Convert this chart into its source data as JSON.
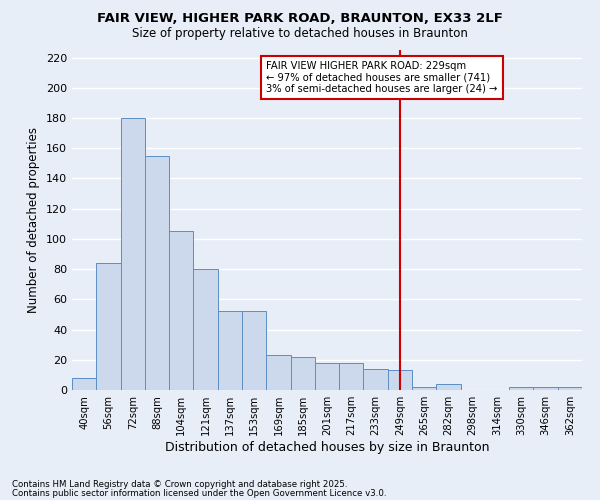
{
  "title": "FAIR VIEW, HIGHER PARK ROAD, BRAUNTON, EX33 2LF",
  "subtitle": "Size of property relative to detached houses in Braunton",
  "xlabel": "Distribution of detached houses by size in Braunton",
  "ylabel": "Number of detached properties",
  "categories": [
    "40sqm",
    "56sqm",
    "72sqm",
    "88sqm",
    "104sqm",
    "121sqm",
    "137sqm",
    "153sqm",
    "169sqm",
    "185sqm",
    "201sqm",
    "217sqm",
    "233sqm",
    "249sqm",
    "265sqm",
    "282sqm",
    "298sqm",
    "314sqm",
    "330sqm",
    "346sqm",
    "362sqm"
  ],
  "values": [
    8,
    84,
    180,
    155,
    105,
    80,
    52,
    52,
    23,
    22,
    18,
    18,
    14,
    13,
    2,
    4,
    0,
    0,
    2,
    2,
    2
  ],
  "bar_color": "#ccd9ed",
  "bar_edge_color": "#5b8ec4",
  "background_color": "#e8eef8",
  "grid_color": "#ffffff",
  "vline_x": 13.0,
  "vline_color": "#cc0000",
  "annotation_title": "FAIR VIEW HIGHER PARK ROAD: 229sqm",
  "annotation_line1": "← 97% of detached houses are smaller (741)",
  "annotation_line2": "3% of semi-detached houses are larger (24) →",
  "annotation_box_color": "#ffffff",
  "annotation_border_color": "#cc0000",
  "ylim": [
    0,
    225
  ],
  "yticks": [
    0,
    20,
    40,
    60,
    80,
    100,
    120,
    140,
    160,
    180,
    200,
    220
  ],
  "footnote1": "Contains HM Land Registry data © Crown copyright and database right 2025.",
  "footnote2": "Contains public sector information licensed under the Open Government Licence v3.0."
}
